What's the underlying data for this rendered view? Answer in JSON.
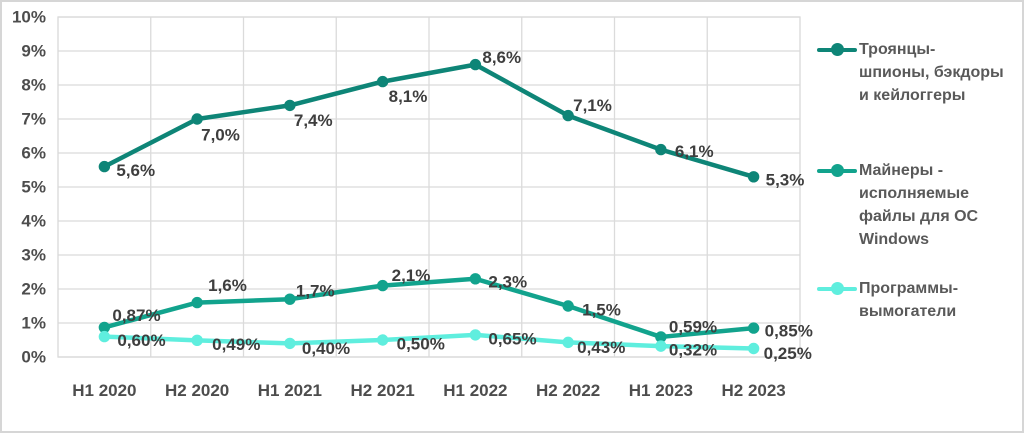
{
  "chart_data": {
    "type": "line",
    "categories": [
      "H1 2020",
      "H2 2020",
      "H1 2021",
      "H2 2021",
      "H1 2022",
      "H2 2022",
      "H1 2023",
      "H2 2023"
    ],
    "y_ticks": [
      "0%",
      "1%",
      "2%",
      "3%",
      "4%",
      "5%",
      "6%",
      "7%",
      "8%",
      "9%",
      "10%"
    ],
    "ylim": [
      0,
      10
    ],
    "grid": true,
    "legend_position": "right",
    "series": [
      {
        "name": "Троянцы-\nшпионы, бэкдоры\nи кейлоггеры",
        "color": "#0E8577",
        "values": [
          5.6,
          7.0,
          7.4,
          8.1,
          8.6,
          7.1,
          6.1,
          5.3
        ],
        "labels": [
          "5,6%",
          "7,0%",
          "7,4%",
          "8,1%",
          "8,6%",
          "7,1%",
          "6,1%",
          "5,3%"
        ],
        "label_offsets": [
          [
            12,
            4
          ],
          [
            4,
            16
          ],
          [
            4,
            15
          ],
          [
            6,
            15
          ],
          [
            7,
            -7
          ],
          [
            5,
            -10
          ],
          [
            14,
            2
          ],
          [
            12,
            3
          ]
        ]
      },
      {
        "name": "Майнеры -\nисполняемые\nфайлы для ОС\nWindows",
        "color": "#12A38D",
        "values": [
          0.87,
          1.6,
          1.7,
          2.1,
          2.3,
          1.5,
          0.59,
          0.85
        ],
        "labels": [
          "0,87%",
          "1,6%",
          "1,7%",
          "2,1%",
          "2,3%",
          "1,5%",
          "0,59%",
          "0,85%"
        ],
        "label_offsets": [
          [
            8,
            -12
          ],
          [
            11,
            -17
          ],
          [
            6,
            -8
          ],
          [
            9,
            -10
          ],
          [
            13,
            3
          ],
          [
            14,
            4
          ],
          [
            8,
            -10
          ],
          [
            11,
            3
          ]
        ]
      },
      {
        "name": "Программы-\nвымогатели",
        "color": "#5FEEDE",
        "values": [
          0.6,
          0.49,
          0.4,
          0.5,
          0.65,
          0.43,
          0.32,
          0.25
        ],
        "labels": [
          "0,60%",
          "0,49%",
          "0,40%",
          "0,50%",
          "0,65%",
          "0,43%",
          "0,32%",
          "0,25%"
        ],
        "label_offsets": [
          [
            13,
            4
          ],
          [
            15,
            4
          ],
          [
            12,
            5
          ],
          [
            14,
            4
          ],
          [
            13,
            4
          ],
          [
            9,
            5
          ],
          [
            8,
            4
          ],
          [
            10,
            5
          ]
        ]
      }
    ]
  }
}
